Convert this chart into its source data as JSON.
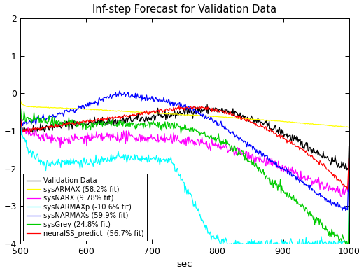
{
  "title": "Inf-step Forecast for Validation Data",
  "xlabel": "sec",
  "xlim": [
    500,
    1000
  ],
  "ylim": [
    -4,
    2
  ],
  "yticks": [
    -4,
    -3,
    -2,
    -1,
    0,
    1,
    2
  ],
  "xticks": [
    500,
    600,
    700,
    800,
    900,
    1000
  ],
  "colors": {
    "validation": "#000000",
    "sysARMAX": "#ffff00",
    "sysNARX": "#ff00ff",
    "sysNARMAXp": "#00ffff",
    "sysNARMAXs": "#0000ff",
    "sysGrey": "#00cc00",
    "neuralSS": "#ff0000"
  },
  "legend_labels": [
    "Validation Data",
    "sysARMAX (58.2% fit)",
    "sysNARX (9.78% fit)",
    "sysNARMAXp (-10.6% fit)",
    "sysNARMAXs (59.9% fit)",
    "sysGrey (24.8% fit)",
    "neuralSS_predict  (56.7% fit)"
  ],
  "seed": 42
}
